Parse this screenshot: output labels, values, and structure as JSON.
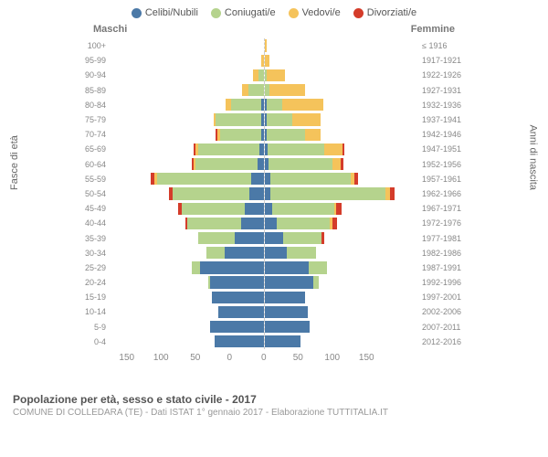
{
  "legend": [
    {
      "label": "Celibi/Nubili",
      "color": "#4b79a7"
    },
    {
      "label": "Coniugati/e",
      "color": "#b5d38d"
    },
    {
      "label": "Vedovi/e",
      "color": "#f5c35b"
    },
    {
      "label": "Divorziati/e",
      "color": "#d43c2a"
    }
  ],
  "headers": {
    "male": "Maschi",
    "female": "Femmine"
  },
  "axis": {
    "left": "Fasce di età",
    "right": "Anni di nascita"
  },
  "xticks": [
    "0",
    "50",
    "100",
    "150"
  ],
  "xmax": 150,
  "caption": {
    "title": "Popolazione per età, sesso e stato civile - 2017",
    "sub": "COMUNE DI COLLEDARA (TE) - Dati ISTAT 1° gennaio 2017 - Elaborazione TUTTITALIA.IT"
  },
  "rows": [
    {
      "age": "100+",
      "birth": "≤ 1916",
      "m": [
        0,
        0,
        0,
        0
      ],
      "f": [
        0,
        0,
        2,
        0
      ]
    },
    {
      "age": "95-99",
      "birth": "1917-1921",
      "m": [
        0,
        0,
        2,
        0
      ],
      "f": [
        0,
        0,
        5,
        0
      ]
    },
    {
      "age": "90-94",
      "birth": "1922-1926",
      "m": [
        0,
        5,
        5,
        0
      ],
      "f": [
        0,
        2,
        18,
        0
      ]
    },
    {
      "age": "85-89",
      "birth": "1927-1931",
      "m": [
        0,
        15,
        6,
        0
      ],
      "f": [
        0,
        5,
        35,
        0
      ]
    },
    {
      "age": "80-84",
      "birth": "1932-1936",
      "m": [
        2,
        30,
        5,
        0
      ],
      "f": [
        2,
        15,
        40,
        0
      ]
    },
    {
      "age": "75-79",
      "birth": "1937-1941",
      "m": [
        2,
        45,
        2,
        0
      ],
      "f": [
        2,
        25,
        28,
        0
      ]
    },
    {
      "age": "70-74",
      "birth": "1942-1946",
      "m": [
        2,
        40,
        3,
        2
      ],
      "f": [
        2,
        38,
        15,
        0
      ]
    },
    {
      "age": "65-69",
      "birth": "1947-1951",
      "m": [
        4,
        60,
        2,
        2
      ],
      "f": [
        3,
        55,
        18,
        2
      ]
    },
    {
      "age": "60-64",
      "birth": "1952-1956",
      "m": [
        6,
        60,
        2,
        2
      ],
      "f": [
        4,
        62,
        8,
        3
      ]
    },
    {
      "age": "55-59",
      "birth": "1957-1961",
      "m": [
        12,
        92,
        2,
        4
      ],
      "f": [
        6,
        78,
        4,
        3
      ]
    },
    {
      "age": "50-54",
      "birth": "1962-1966",
      "m": [
        14,
        75,
        0,
        3
      ],
      "f": [
        6,
        112,
        4,
        5
      ]
    },
    {
      "age": "45-49",
      "birth": "1967-1971",
      "m": [
        18,
        62,
        0,
        3
      ],
      "f": [
        8,
        60,
        2,
        5
      ]
    },
    {
      "age": "40-44",
      "birth": "1972-1976",
      "m": [
        22,
        52,
        0,
        2
      ],
      "f": [
        12,
        52,
        2,
        5
      ]
    },
    {
      "age": "35-39",
      "birth": "1977-1981",
      "m": [
        28,
        36,
        0,
        0
      ],
      "f": [
        18,
        38,
        0,
        2
      ]
    },
    {
      "age": "30-34",
      "birth": "1982-1986",
      "m": [
        38,
        18,
        0,
        0
      ],
      "f": [
        22,
        28,
        0,
        0
      ]
    },
    {
      "age": "25-29",
      "birth": "1987-1991",
      "m": [
        62,
        8,
        0,
        0
      ],
      "f": [
        43,
        18,
        0,
        0
      ]
    },
    {
      "age": "20-24",
      "birth": "1992-1996",
      "m": [
        52,
        2,
        0,
        0
      ],
      "f": [
        48,
        5,
        0,
        0
      ]
    },
    {
      "age": "15-19",
      "birth": "1997-2001",
      "m": [
        50,
        0,
        0,
        0
      ],
      "f": [
        40,
        0,
        0,
        0
      ]
    },
    {
      "age": "10-14",
      "birth": "2002-2006",
      "m": [
        44,
        0,
        0,
        0
      ],
      "f": [
        42,
        0,
        0,
        0
      ]
    },
    {
      "age": "5-9",
      "birth": "2007-2011",
      "m": [
        52,
        0,
        0,
        0
      ],
      "f": [
        44,
        0,
        0,
        0
      ]
    },
    {
      "age": "0-4",
      "birth": "2012-2016",
      "m": [
        48,
        0,
        0,
        0
      ],
      "f": [
        35,
        0,
        0,
        0
      ]
    }
  ]
}
